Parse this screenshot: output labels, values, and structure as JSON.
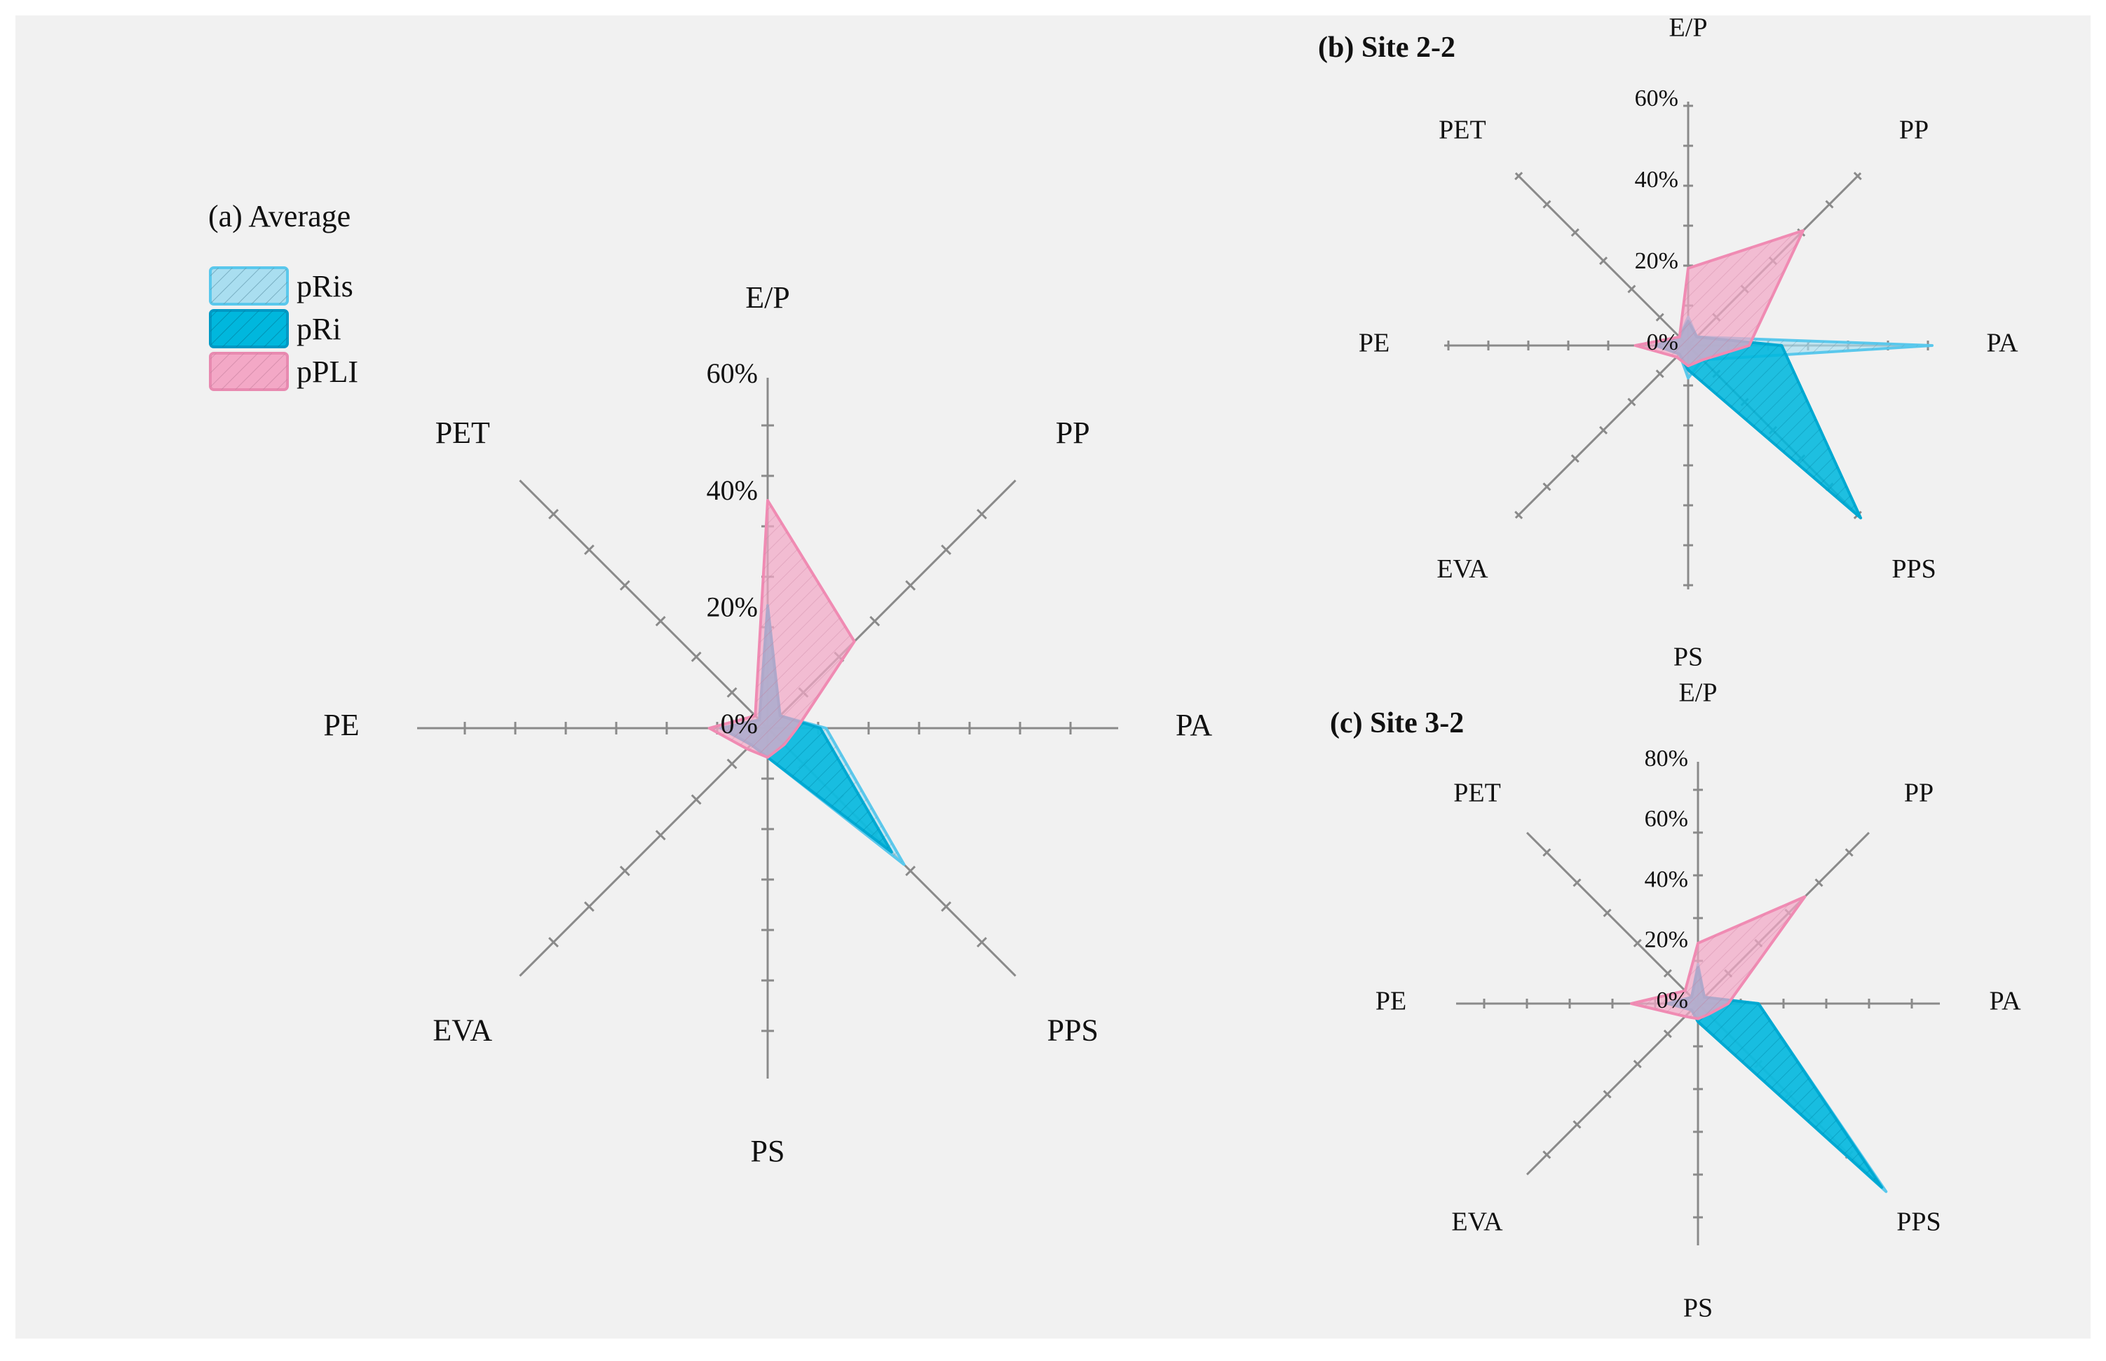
{
  "chart_data": [
    {
      "type": "radar",
      "title": "(a) Average",
      "axes": [
        "E/P",
        "PP",
        "PA",
        "PPS",
        "PS",
        "EVA",
        "PE",
        "PET"
      ],
      "r_ticks": [
        "0%",
        "20%",
        "40%",
        "60%"
      ],
      "r_max": 60,
      "r_ticks_values": [
        0,
        20,
        40,
        60
      ],
      "legend": [
        "pRis",
        "pRi",
        "pPLI"
      ],
      "series": [
        {
          "name": "pRis",
          "values": [
            20,
            3,
            10,
            33,
            5,
            4,
            8,
            2
          ]
        },
        {
          "name": "pRi",
          "values": [
            21,
            3,
            9,
            30,
            5,
            4,
            8,
            2
          ]
        },
        {
          "name": "pPLI",
          "values": [
            39,
            21,
            5,
            4,
            5,
            5,
            10,
            3
          ]
        }
      ]
    },
    {
      "type": "radar",
      "title": "(b) Site 2-2",
      "axes": [
        "E/P",
        "PP",
        "PA",
        "PPS",
        "PS",
        "EVA",
        "PE",
        "PET"
      ],
      "r_ticks": [
        "0%",
        "20%",
        "40%",
        "60%"
      ],
      "r_max": 60,
      "r_ticks_values": [
        0,
        20,
        40,
        60
      ],
      "series": [
        {
          "name": "pRis",
          "values": [
            7,
            3,
            60,
            5,
            8,
            3,
            8,
            3
          ]
        },
        {
          "name": "pRi",
          "values": [
            6,
            3,
            23,
            60,
            6,
            3,
            8,
            3
          ]
        },
        {
          "name": "pPLI",
          "values": [
            19,
            40,
            15,
            5,
            5,
            4,
            13,
            3
          ]
        }
      ]
    },
    {
      "type": "radar",
      "title": "(c) Site 3-2",
      "axes": [
        "E/P",
        "PP",
        "PA",
        "PPS",
        "PS",
        "EVA",
        "PE",
        "PET"
      ],
      "r_ticks": [
        "0%",
        "20%",
        "40%",
        "60%",
        "80%"
      ],
      "r_max": 80,
      "r_ticks_values": [
        0,
        20,
        40,
        60,
        80
      ],
      "series": [
        {
          "name": "pRis",
          "values": [
            13,
            3,
            20,
            88,
            6,
            3,
            10,
            3
          ]
        },
        {
          "name": "pRi",
          "values": [
            12,
            3,
            20,
            86,
            6,
            3,
            10,
            3
          ]
        },
        {
          "name": "pPLI",
          "values": [
            20,
            50,
            10,
            5,
            5,
            6,
            22,
            6
          ]
        }
      ]
    }
  ],
  "legend_items": [
    {
      "label": "pRis",
      "fill": "#a9def0",
      "stroke": "#5ac8ec"
    },
    {
      "label": "pRi",
      "fill": "#00b7dd",
      "stroke": "#0099c4"
    },
    {
      "label": "pPLI",
      "fill": "#f3a8c6",
      "stroke": "#e88ab0"
    }
  ],
  "colors": {
    "pRis": {
      "fill": "#a9def0",
      "stroke": "#5ac8ec"
    },
    "pRi": {
      "fill": "#00b7dd",
      "stroke": "#00a9d2"
    },
    "pPLI": {
      "fill": "#f3a8c6",
      "stroke": "#f08bb3"
    },
    "background": "#f1f1f1"
  }
}
